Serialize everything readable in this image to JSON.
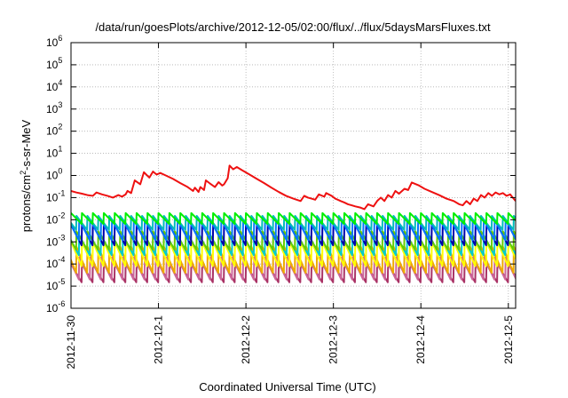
{
  "chart_data": {
    "type": "line",
    "title": "/data/run/goesPlots/archive/2012-12-05/02:00/flux/../flux/5daysMarsFluxes.txt",
    "xlabel": "Coordinated Universal Time (UTC)",
    "ylabel": {
      "base": "protons/cm",
      "sup": "2",
      "rest": "-s-sr-MeV"
    },
    "yscale": "log",
    "ylim": [
      1e-06,
      1000000.0
    ],
    "y_ticks": [
      {
        "base": "10",
        "exp": "-6",
        "value": 1e-06
      },
      {
        "base": "10",
        "exp": "-5",
        "value": 1e-05
      },
      {
        "base": "10",
        "exp": "-4",
        "value": 0.0001
      },
      {
        "base": "10",
        "exp": "-3",
        "value": 0.001
      },
      {
        "base": "10",
        "exp": "-2",
        "value": 0.01
      },
      {
        "base": "10",
        "exp": "-1",
        "value": 0.1
      },
      {
        "base": "10",
        "exp": "0",
        "value": 1
      },
      {
        "base": "10",
        "exp": "1",
        "value": 10
      },
      {
        "base": "10",
        "exp": "2",
        "value": 100
      },
      {
        "base": "10",
        "exp": "3",
        "value": 1000
      },
      {
        "base": "10",
        "exp": "4",
        "value": 10000
      },
      {
        "base": "10",
        "exp": "5",
        "value": 100000
      },
      {
        "base": "10",
        "exp": "6",
        "value": 1000000
      }
    ],
    "xlim": [
      "2012-11-30T00:00",
      "2012-12-05T02:00"
    ],
    "x_ticks": [
      {
        "label": "2012-11-30",
        "value": "2012-11-30T00:00"
      },
      {
        "label": "2012-12-1",
        "value": "2012-12-01T00:00"
      },
      {
        "label": "2012-12-2",
        "value": "2012-12-02T00:00"
      },
      {
        "label": "2012-12-3",
        "value": "2012-12-03T00:00"
      },
      {
        "label": "2012-12-4",
        "value": "2012-12-04T00:00"
      },
      {
        "label": "2012-12-5",
        "value": "2012-12-05T00:00"
      }
    ],
    "grid": true,
    "series": [
      {
        "color": "#ee1111",
        "points": [
          [
            "2012-11-30T00:00",
            0.2
          ],
          [
            "2012-11-30T01:30",
            0.17
          ],
          [
            "2012-11-30T03:00",
            0.15
          ],
          [
            "2012-11-30T04:30",
            0.13
          ],
          [
            "2012-11-30T06:00",
            0.12
          ],
          [
            "2012-11-30T07:00",
            0.17
          ],
          [
            "2012-11-30T08:30",
            0.14
          ],
          [
            "2012-11-30T10:00",
            0.12
          ],
          [
            "2012-11-30T11:30",
            0.1
          ],
          [
            "2012-11-30T13:00",
            0.13
          ],
          [
            "2012-11-30T14:00",
            0.11
          ],
          [
            "2012-11-30T15:00",
            0.14
          ],
          [
            "2012-11-30T15:30",
            0.2
          ],
          [
            "2012-11-30T16:30",
            0.16
          ],
          [
            "2012-11-30T17:30",
            0.6
          ],
          [
            "2012-11-30T19:00",
            0.4
          ],
          [
            "2012-11-30T20:00",
            1.4
          ],
          [
            "2012-11-30T21:30",
            0.8
          ],
          [
            "2012-11-30T22:30",
            1.5
          ],
          [
            "2012-11-30T23:30",
            1.1
          ],
          [
            "2012-12-01T00:30",
            1.3
          ],
          [
            "2012-12-01T02:00",
            1.0
          ],
          [
            "2012-12-01T04:00",
            0.7
          ],
          [
            "2012-12-01T06:00",
            0.45
          ],
          [
            "2012-12-01T08:00",
            0.3
          ],
          [
            "2012-12-01T09:30",
            0.2
          ],
          [
            "2012-12-01T10:00",
            0.28
          ],
          [
            "2012-12-01T11:00",
            0.18
          ],
          [
            "2012-12-01T11:30",
            0.3
          ],
          [
            "2012-12-01T12:30",
            0.22
          ],
          [
            "2012-12-01T13:00",
            0.6
          ],
          [
            "2012-12-01T14:00",
            0.45
          ],
          [
            "2012-12-01T15:30",
            0.3
          ],
          [
            "2012-12-01T16:30",
            0.5
          ],
          [
            "2012-12-01T17:30",
            0.35
          ],
          [
            "2012-12-01T18:00",
            0.4
          ],
          [
            "2012-12-01T18:30",
            0.55
          ],
          [
            "2012-12-01T19:00",
            0.75
          ],
          [
            "2012-12-01T19:30",
            2.8
          ],
          [
            "2012-12-01T20:30",
            1.9
          ],
          [
            "2012-12-01T21:30",
            2.4
          ],
          [
            "2012-12-01T23:00",
            1.7
          ],
          [
            "2012-12-02T01:00",
            1.1
          ],
          [
            "2012-12-02T03:00",
            0.7
          ],
          [
            "2012-12-02T05:00",
            0.45
          ],
          [
            "2012-12-02T07:00",
            0.28
          ],
          [
            "2012-12-02T09:00",
            0.18
          ],
          [
            "2012-12-02T11:00",
            0.12
          ],
          [
            "2012-12-02T13:00",
            0.09
          ],
          [
            "2012-12-02T15:00",
            0.07
          ],
          [
            "2012-12-02T16:00",
            0.12
          ],
          [
            "2012-12-02T17:00",
            0.1
          ],
          [
            "2012-12-02T18:00",
            0.09
          ],
          [
            "2012-12-02T19:00",
            0.08
          ],
          [
            "2012-12-02T20:00",
            0.14
          ],
          [
            "2012-12-02T21:30",
            0.11
          ],
          [
            "2012-12-02T22:00",
            0.16
          ],
          [
            "2012-12-02T23:30",
            0.12
          ],
          [
            "2012-12-03T00:30",
            0.09
          ],
          [
            "2012-12-03T02:00",
            0.07
          ],
          [
            "2012-12-03T03:00",
            0.06
          ],
          [
            "2012-12-03T04:00",
            0.05
          ],
          [
            "2012-12-03T05:00",
            0.045
          ],
          [
            "2012-12-03T06:00",
            0.04
          ],
          [
            "2012-12-03T07:30",
            0.035
          ],
          [
            "2012-12-03T08:30",
            0.03
          ],
          [
            "2012-12-03T09:30",
            0.05
          ],
          [
            "2012-12-03T11:00",
            0.04
          ],
          [
            "2012-12-03T12:00",
            0.07
          ],
          [
            "2012-12-03T13:00",
            0.1
          ],
          [
            "2012-12-03T14:00",
            0.07
          ],
          [
            "2012-12-03T15:00",
            0.13
          ],
          [
            "2012-12-03T16:00",
            0.1
          ],
          [
            "2012-12-03T17:00",
            0.2
          ],
          [
            "2012-12-03T18:00",
            0.15
          ],
          [
            "2012-12-03T19:30",
            0.25
          ],
          [
            "2012-12-03T20:30",
            0.22
          ],
          [
            "2012-12-03T21:30",
            0.48
          ],
          [
            "2012-12-03T23:30",
            0.35
          ],
          [
            "2012-12-04T01:00",
            0.25
          ],
          [
            "2012-12-04T03:00",
            0.18
          ],
          [
            "2012-12-04T05:00",
            0.13
          ],
          [
            "2012-12-04T07:00",
            0.09
          ],
          [
            "2012-12-04T09:00",
            0.07
          ],
          [
            "2012-12-04T10:30",
            0.05
          ],
          [
            "2012-12-04T11:30",
            0.045
          ],
          [
            "2012-12-04T12:30",
            0.07
          ],
          [
            "2012-12-04T13:30",
            0.05
          ],
          [
            "2012-12-04T14:30",
            0.09
          ],
          [
            "2012-12-04T15:30",
            0.07
          ],
          [
            "2012-12-04T16:30",
            0.13
          ],
          [
            "2012-12-04T17:30",
            0.1
          ],
          [
            "2012-12-04T18:30",
            0.16
          ],
          [
            "2012-12-04T19:30",
            0.12
          ],
          [
            "2012-12-04T20:30",
            0.17
          ],
          [
            "2012-12-04T21:30",
            0.14
          ],
          [
            "2012-12-04T22:30",
            0.16
          ],
          [
            "2012-12-04T23:30",
            0.12
          ],
          [
            "2012-12-05T00:30",
            0.14
          ],
          [
            "2012-12-05T01:00",
            0.11
          ],
          [
            "2012-12-05T02:00",
            0.07
          ]
        ]
      },
      {
        "color": "#00ee00",
        "sawtooth": {
          "period_hours": 3,
          "peak": 0.02,
          "trough": 0.0065
        }
      },
      {
        "color": "#00bbbb",
        "sawtooth": {
          "period_hours": 3,
          "peak": 0.015,
          "trough": 0.0035
        }
      },
      {
        "color": "#0077ff",
        "sawtooth": {
          "period_hours": 3,
          "peak": 0.01,
          "trough": 0.0012
        }
      },
      {
        "color": "#0000aa",
        "sawtooth": {
          "period_hours": 3,
          "peak": 0.006,
          "trough": 0.0007
        }
      },
      {
        "color": "#66cc00",
        "sawtooth": {
          "period_hours": 3,
          "peak": 0.003,
          "trough": 0.00045
        }
      },
      {
        "color": "#00cccc",
        "sawtooth": {
          "period_hours": 3,
          "peak": 0.002,
          "trough": 0.00025
        }
      },
      {
        "color": "#ffff00",
        "sawtooth": {
          "period_hours": 3,
          "peak": 0.001,
          "trough": 8e-05
        }
      },
      {
        "color": "#eeaa00",
        "sawtooth": {
          "period_hours": 3,
          "peak": 0.0006,
          "trough": 4e-05
        }
      },
      {
        "color": "#cc6699",
        "sawtooth": {
          "period_hours": 3,
          "peak": 0.0002,
          "trough": 2e-05
        }
      },
      {
        "color": "#aa3366",
        "sawtooth": {
          "period_hours": 3,
          "peak": 0.0001,
          "trough": 1.5e-05
        }
      }
    ]
  }
}
